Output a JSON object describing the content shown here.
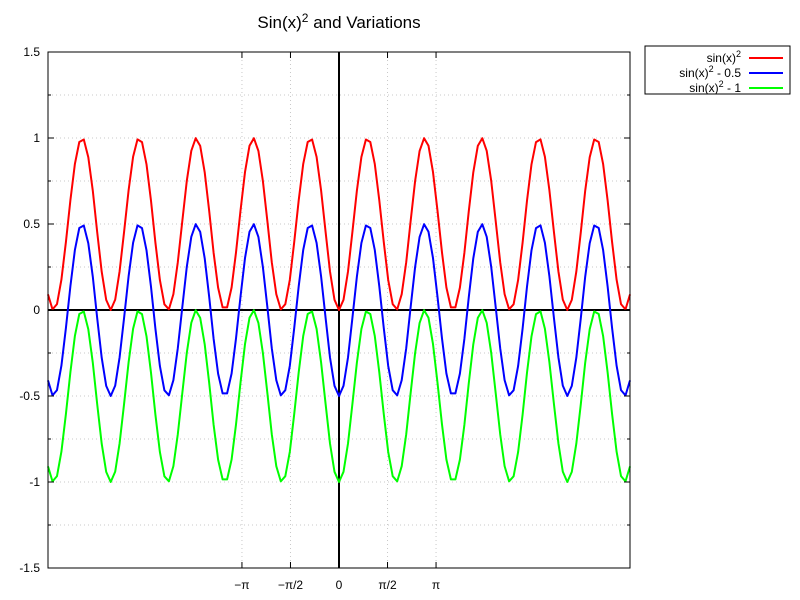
{
  "chart_data": {
    "type": "line",
    "title": "Sin(x)",
    "title_superscript": "2",
    "title_suffix": " and Variations",
    "xlabel": "",
    "ylabel": "",
    "xlim": [
      -9.42,
      9.42
    ],
    "ylim": [
      -1.5,
      1.5
    ],
    "y_ticks": [
      "1.5",
      "1",
      "0.5",
      "0",
      "-0.5",
      "-1",
      "-1.5"
    ],
    "x_ticks": [
      {
        "value": -3.1416,
        "label": "−π"
      },
      {
        "value": -1.5708,
        "label": "−π/2"
      },
      {
        "value": 0,
        "label": "0"
      },
      {
        "value": 1.5708,
        "label": "π/2"
      },
      {
        "value": 3.1416,
        "label": "π"
      }
    ],
    "grid": true,
    "legend_position": "outside-top-right",
    "frequency": 1.7,
    "series": [
      {
        "name_base": "sin(x)",
        "name_sup": "2",
        "name_suffix": "",
        "offset": 0,
        "color": "#ff0000"
      },
      {
        "name_base": "sin(x)",
        "name_sup": "2",
        "name_suffix": " - 0.5",
        "offset": -0.5,
        "color": "#0000ff"
      },
      {
        "name_base": "sin(x)",
        "name_sup": "2",
        "name_suffix": " - 1",
        "offset": -1,
        "color": "#00ff00"
      }
    ]
  }
}
